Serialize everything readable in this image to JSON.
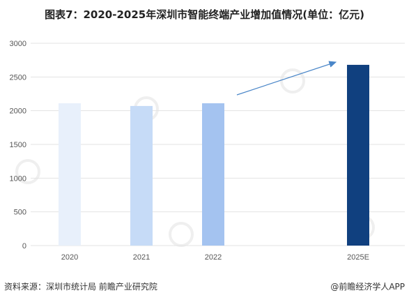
{
  "header": {
    "title": "图表7：2020-2025年深圳市智能终端产业增加值情况(单位：亿元)"
  },
  "footer": {
    "source": "资料来源：深圳市统计局 前瞻产业研究院",
    "credit": "@前瞻经济学人APP"
  },
  "colors": {
    "bar_2020": "#e8f0fb",
    "bar_2021": "#c6dbf7",
    "bar_2022": "#a4c3f0",
    "bar_2025E": "#10407f",
    "arrow": "#4a86c8",
    "gridline": "#e3e3e3"
  },
  "chart_data": {
    "type": "bar",
    "categories": [
      "2020",
      "2021",
      "2022",
      "2025E"
    ],
    "values": [
      2110,
      2070,
      2110,
      2680
    ],
    "title": "图表7：2020-2025年深圳市智能终端产业增加值情况(单位：亿元)",
    "xlabel": "",
    "ylabel": "",
    "ylim": [
      0,
      3000
    ],
    "yticks": [
      0,
      500,
      1000,
      1500,
      2000,
      2500,
      3000
    ],
    "grid": true,
    "legend": "none",
    "annotation": "upward trend arrow from 2022 toward 2025E"
  }
}
